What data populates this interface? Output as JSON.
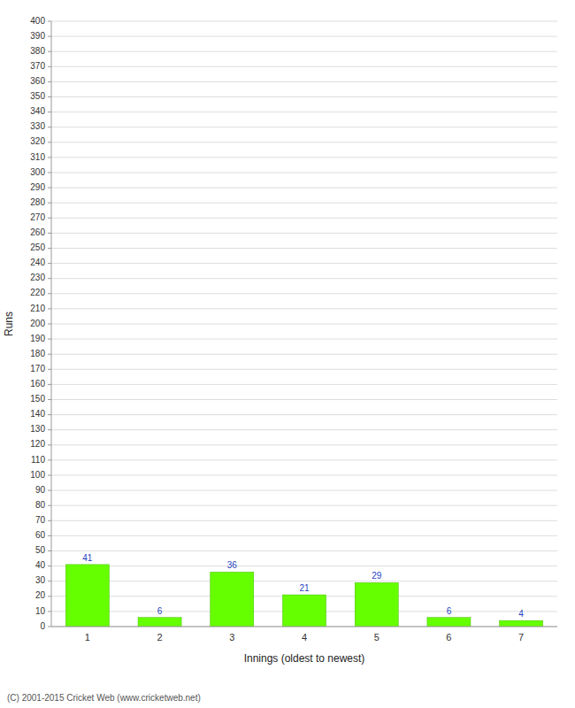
{
  "chart_data": {
    "type": "bar",
    "categories": [
      "1",
      "2",
      "3",
      "4",
      "5",
      "6",
      "7"
    ],
    "values": [
      41,
      6,
      36,
      21,
      29,
      6,
      4
    ],
    "color": "#66ff00",
    "xlabel": "Innings (oldest to newest)",
    "ylabel": "Runs",
    "annotations": [
      "(C) 2001-2015 Cricket Web (www.cricketweb.net)"
    ],
    "ylim": [
      0,
      400
    ],
    "yticks": [
      0,
      10,
      20,
      30,
      40,
      50,
      60,
      70,
      80,
      90,
      100,
      110,
      120,
      130,
      140,
      150,
      160,
      170,
      180,
      190,
      200,
      210,
      220,
      230,
      240,
      250,
      260,
      270,
      280,
      290,
      300,
      310,
      320,
      330,
      340,
      350,
      360,
      370,
      380,
      390,
      400
    ],
    "grid": true,
    "data_labels": true
  }
}
